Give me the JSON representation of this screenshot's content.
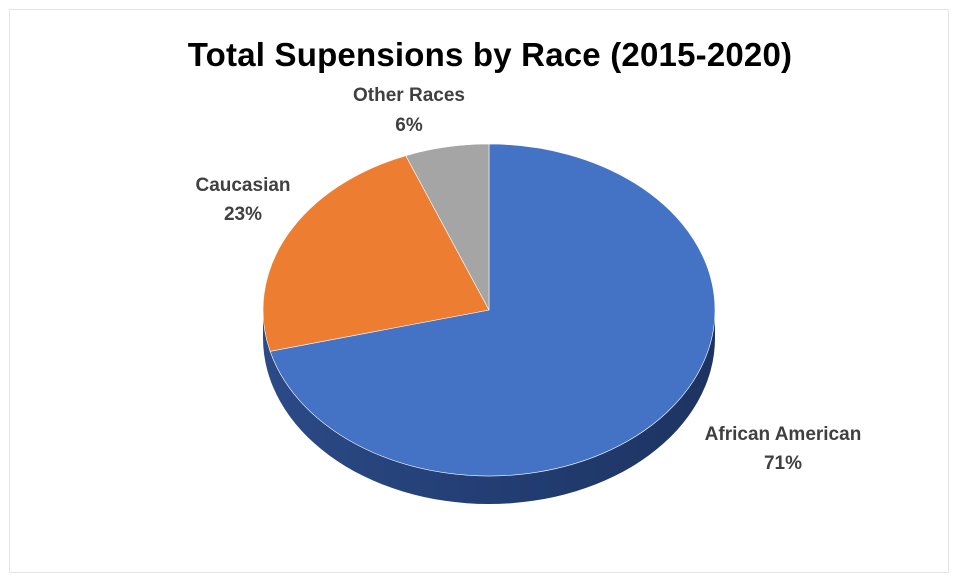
{
  "chart_data": {
    "type": "pie",
    "title": "Total Supensions by Race (2015-2020)",
    "slices": [
      {
        "name": "African American",
        "value": 71,
        "label": "71%"
      },
      {
        "name": "Caucasian",
        "value": 23,
        "label": "23%"
      },
      {
        "name": "Other Races",
        "value": 6,
        "label": "6%"
      }
    ],
    "colors": {
      "African American": "#4472C4",
      "Caucasian": "#ED7D31",
      "Other Races": "#A5A5A5"
    },
    "start": "12 o'clock",
    "direction": "clockwise",
    "style": "3d",
    "legend": "none"
  }
}
